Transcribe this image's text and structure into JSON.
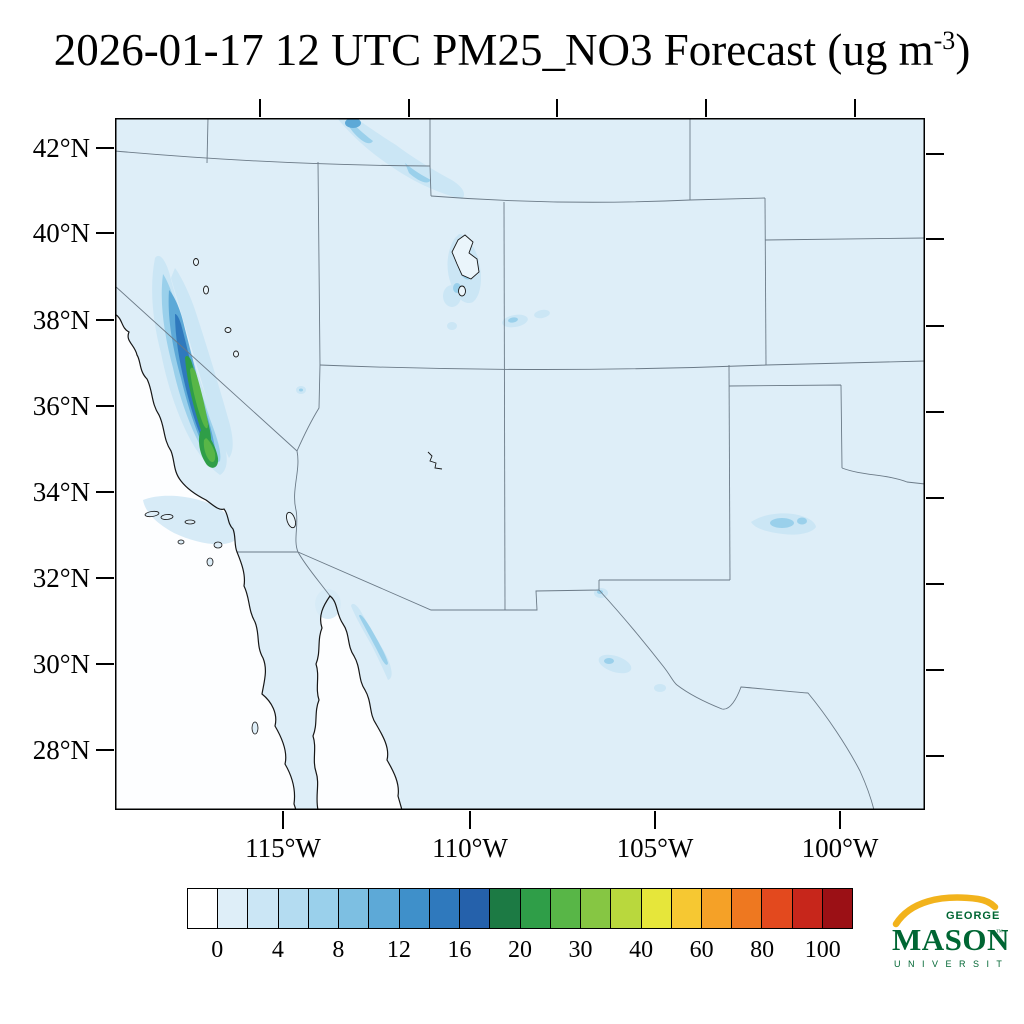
{
  "title": {
    "prefix": "2026-01-17 12 UTC PM25_NO3 Forecast (ug m",
    "superscript": "-3",
    "suffix": ")"
  },
  "axes": {
    "lat_labels": [
      "42°N",
      "40°N",
      "38°N",
      "36°N",
      "34°N",
      "32°N",
      "30°N",
      "28°N"
    ],
    "lon_labels": [
      "115°W",
      "110°W",
      "105°W",
      "100°W"
    ]
  },
  "colorbar": {
    "colors": [
      "#ffffff",
      "#deeef8",
      "#cbe6f5",
      "#b4dcf1",
      "#9ad0eb",
      "#7dbfe2",
      "#5da9d7",
      "#3f90ca",
      "#2f79bd",
      "#2561ab",
      "#1c7a44",
      "#2f9e48",
      "#58b647",
      "#86c643",
      "#b9d83d",
      "#e6e63a",
      "#f6c832",
      "#f5a127",
      "#ee7820",
      "#e3491e",
      "#c7261b",
      "#9b1015"
    ],
    "tick_labels": [
      "0",
      "4",
      "8",
      "12",
      "16",
      "20",
      "30",
      "40",
      "60",
      "80",
      "100"
    ]
  },
  "map_colors": {
    "land": "#deeef8",
    "ocean": "#fdfeff",
    "lake": "#eaf5fb",
    "coastline": "#161616",
    "state_border": "#6b7a87",
    "plume_wash": "#d7ebf7",
    "plume_light": "#cbe6f5",
    "plume_mid": "#9ad0eb",
    "plume_blue": "#5da9d7",
    "plume_deep": "#2f79bd",
    "plume_green": "#2f9e48",
    "plume_green_bright": "#58b647"
  },
  "logo": {
    "line1": "GEORGE",
    "line2": "MASON",
    "tm": "™",
    "line3": "U N I V E R S I T Y",
    "green": "#006633",
    "gold": "#f2b31c"
  },
  "chart_data": {
    "type": "heatmap",
    "title": "2026-01-17 12 UTC PM25_NO3 Forecast (ug m-3)",
    "variable": "PM25_NO3",
    "units": "ug m-3",
    "forecast_time": "2026-01-17 12 UTC",
    "map_region": "Southwestern United States and northern Mexico",
    "lat_ticks": [
      42,
      40,
      38,
      36,
      34,
      32,
      30,
      28
    ],
    "lon_ticks": [
      115,
      110,
      105,
      100
    ],
    "colorbar_tick_values": [
      0,
      4,
      8,
      12,
      16,
      20,
      30,
      40,
      60,
      80,
      100
    ],
    "n_color_segments": 22,
    "legend_position": "bottom",
    "grid": false,
    "regions_depicted": [
      {
        "name": "California Central Valley plume",
        "approx_value_range_ug_m3": "8-30"
      },
      {
        "name": "NV/ID border (Snake River Plain) streak",
        "approx_value_range_ug_m3": "2-10"
      },
      {
        "name": "Great Salt Lake / Wasatch Front, Utah",
        "approx_value_range_ug_m3": "2-8"
      },
      {
        "name": "Eastern Utah / western Colorado spots",
        "approx_value_range_ug_m3": "2-6"
      },
      {
        "name": "West Texas (Permian Basin) streak",
        "approx_value_range_ug_m3": "2-6"
      },
      {
        "name": "El Paso / Rio Grande and Big Bend spots",
        "approx_value_range_ug_m3": "2-4"
      },
      {
        "name": "Sonora (Mexico) border streak",
        "approx_value_range_ug_m3": "2-6"
      },
      {
        "name": "Domain background",
        "approx_value_range_ug_m3": "0-2"
      }
    ]
  }
}
